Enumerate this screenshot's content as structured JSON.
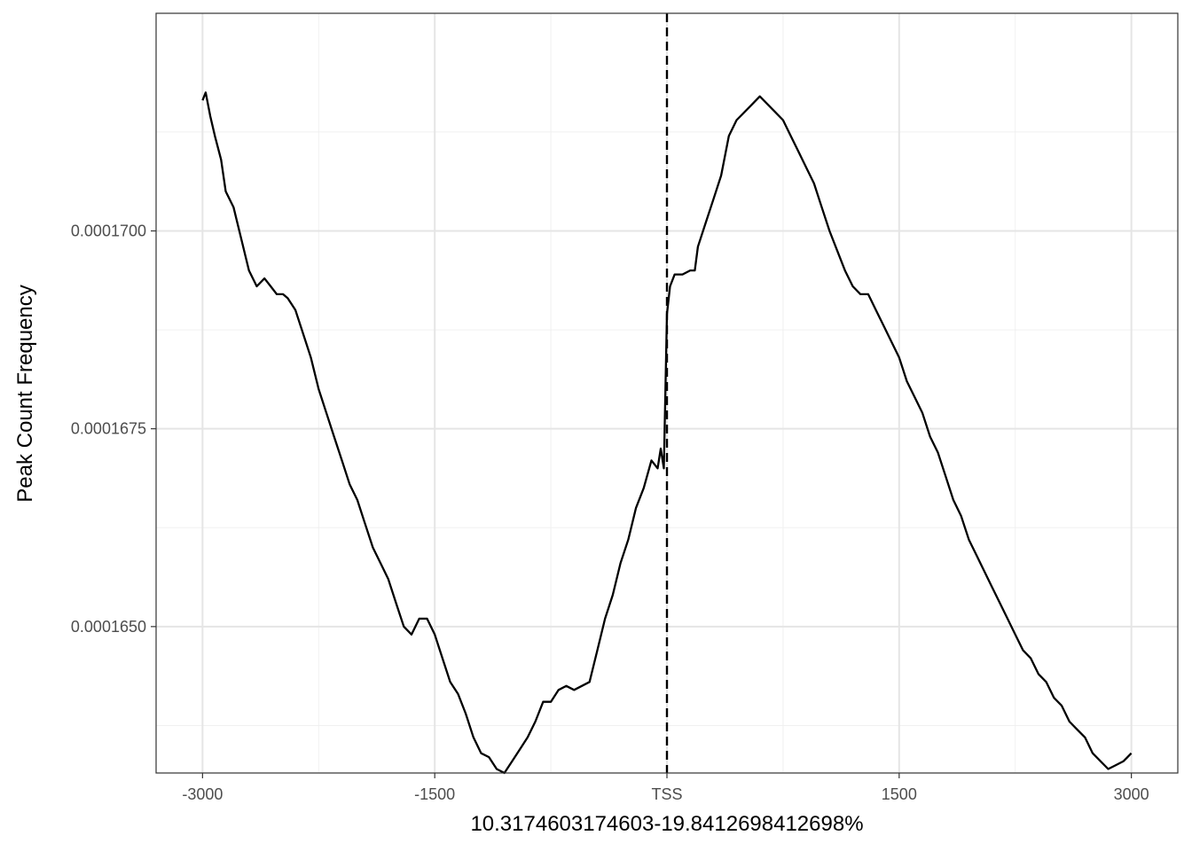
{
  "chart_data": {
    "type": "line",
    "title": "",
    "xlabel": "10.3174603174603-19.8412698412698%",
    "ylabel": "Peak Count Frequency",
    "xlim": [
      -3300,
      3300
    ],
    "ylim": [
      0.00016315,
      0.00017275
    ],
    "x_ticks": [
      {
        "value": -3000,
        "label": "-3000"
      },
      {
        "value": -1500,
        "label": "-1500"
      },
      {
        "value": 0,
        "label": "TSS"
      },
      {
        "value": 1500,
        "label": "1500"
      },
      {
        "value": 3000,
        "label": "3000"
      }
    ],
    "x_minor_ticks": [
      -2250,
      -750,
      750,
      2250
    ],
    "y_ticks": [
      {
        "value": 0.000165,
        "label": "0.0001650"
      },
      {
        "value": 0.0001675,
        "label": "0.0001675"
      },
      {
        "value": 0.00017,
        "label": "0.0001700"
      }
    ],
    "y_minor_ticks": [
      0.00016375,
      0.00016625,
      0.00016875,
      0.00017125
    ],
    "grid": true,
    "vline": {
      "x": 0,
      "style": "dashed",
      "color": "#000000"
    },
    "series": [
      {
        "color": "#000000",
        "x": [
          -3000,
          -2980,
          -2950,
          -2920,
          -2880,
          -2850,
          -2800,
          -2750,
          -2700,
          -2650,
          -2600,
          -2560,
          -2520,
          -2480,
          -2450,
          -2400,
          -2350,
          -2300,
          -2250,
          -2200,
          -2150,
          -2100,
          -2050,
          -2000,
          -1950,
          -1900,
          -1850,
          -1800,
          -1750,
          -1700,
          -1650,
          -1600,
          -1550,
          -1500,
          -1450,
          -1400,
          -1350,
          -1300,
          -1250,
          -1200,
          -1150,
          -1100,
          -1050,
          -1000,
          -950,
          -900,
          -850,
          -800,
          -750,
          -700,
          -650,
          -600,
          -550,
          -500,
          -450,
          -400,
          -350,
          -300,
          -250,
          -200,
          -150,
          -100,
          -60,
          -40,
          -20,
          0,
          20,
          50,
          100,
          150,
          180,
          200,
          250,
          300,
          350,
          400,
          450,
          500,
          550,
          600,
          650,
          700,
          750,
          800,
          850,
          900,
          950,
          1000,
          1050,
          1100,
          1150,
          1200,
          1250,
          1300,
          1350,
          1400,
          1450,
          1500,
          1550,
          1600,
          1650,
          1700,
          1750,
          1800,
          1850,
          1900,
          1950,
          2000,
          2050,
          2100,
          2150,
          2200,
          2250,
          2300,
          2350,
          2400,
          2450,
          2500,
          2550,
          2600,
          2650,
          2700,
          2750,
          2800,
          2850,
          2900,
          2950,
          3000
        ],
        "y": [
          0.00017165,
          0.00017175,
          0.00017145,
          0.0001712,
          0.0001709,
          0.0001705,
          0.0001703,
          0.0001699,
          0.0001695,
          0.0001693,
          0.0001694,
          0.0001693,
          0.0001692,
          0.0001692,
          0.00016915,
          0.000169,
          0.0001687,
          0.0001684,
          0.000168,
          0.0001677,
          0.0001674,
          0.0001671,
          0.0001668,
          0.0001666,
          0.0001663,
          0.000166,
          0.0001658,
          0.0001656,
          0.0001653,
          0.000165,
          0.0001649,
          0.0001651,
          0.0001651,
          0.0001649,
          0.0001646,
          0.0001643,
          0.00016415,
          0.0001639,
          0.0001636,
          0.0001634,
          0.00016335,
          0.0001632,
          0.00016315,
          0.0001633,
          0.00016345,
          0.0001636,
          0.0001638,
          0.00016405,
          0.00016405,
          0.0001642,
          0.00016425,
          0.0001642,
          0.00016425,
          0.0001643,
          0.0001647,
          0.0001651,
          0.0001654,
          0.0001658,
          0.0001661,
          0.0001665,
          0.00016675,
          0.0001671,
          0.000167,
          0.00016725,
          0.000167,
          0.00016895,
          0.0001693,
          0.00016945,
          0.00016945,
          0.0001695,
          0.0001695,
          0.0001698,
          0.0001701,
          0.0001704,
          0.0001707,
          0.0001712,
          0.0001714,
          0.0001715,
          0.0001716,
          0.0001717,
          0.0001716,
          0.0001715,
          0.0001714,
          0.0001712,
          0.000171,
          0.0001708,
          0.0001706,
          0.0001703,
          0.00017,
          0.00016975,
          0.0001695,
          0.0001693,
          0.0001692,
          0.0001692,
          0.000169,
          0.0001688,
          0.0001686,
          0.0001684,
          0.0001681,
          0.0001679,
          0.0001677,
          0.0001674,
          0.0001672,
          0.0001669,
          0.0001666,
          0.0001664,
          0.0001661,
          0.0001659,
          0.0001657,
          0.0001655,
          0.0001653,
          0.0001651,
          0.0001649,
          0.0001647,
          0.0001646,
          0.0001644,
          0.0001643,
          0.0001641,
          0.000164,
          0.0001638,
          0.0001637,
          0.0001636,
          0.0001634,
          0.0001633,
          0.0001632,
          0.00016325,
          0.0001633,
          0.0001634
        ]
      }
    ]
  }
}
